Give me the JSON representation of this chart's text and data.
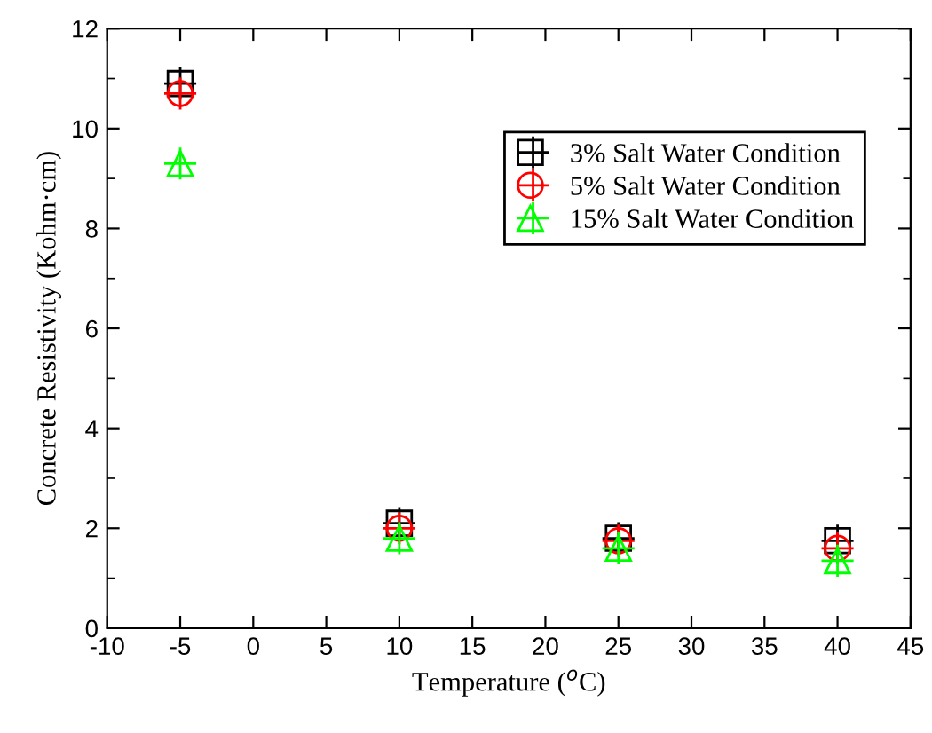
{
  "chart_data": {
    "type": "scatter",
    "xlabel": "Temperature ($^{o}$C)",
    "ylabel": "Concrete Resistivity (Kohm·cm)",
    "x": [
      -5,
      10,
      25,
      40
    ],
    "series": [
      {
        "name": "3% Salt Water Condition",
        "color": "#000000",
        "marker": "square",
        "values": [
          10.9,
          2.1,
          1.8,
          1.75
        ]
      },
      {
        "name": "5% Salt Water Condition",
        "color": "#ff0000",
        "marker": "circle",
        "values": [
          10.7,
          2.0,
          1.75,
          1.6
        ]
      },
      {
        "name": "15% Salt Water Condition",
        "color": "#00ff00",
        "marker": "triangle",
        "values": [
          9.3,
          1.8,
          1.6,
          1.35
        ]
      }
    ],
    "xlim": [
      -10,
      45
    ],
    "xticks": [
      -10,
      -5,
      0,
      5,
      10,
      15,
      20,
      25,
      30,
      35,
      40,
      45
    ],
    "ylim": [
      0,
      12
    ],
    "yticks": [
      0,
      2,
      4,
      6,
      8,
      10,
      12
    ],
    "grid": false,
    "legend": "top right"
  }
}
